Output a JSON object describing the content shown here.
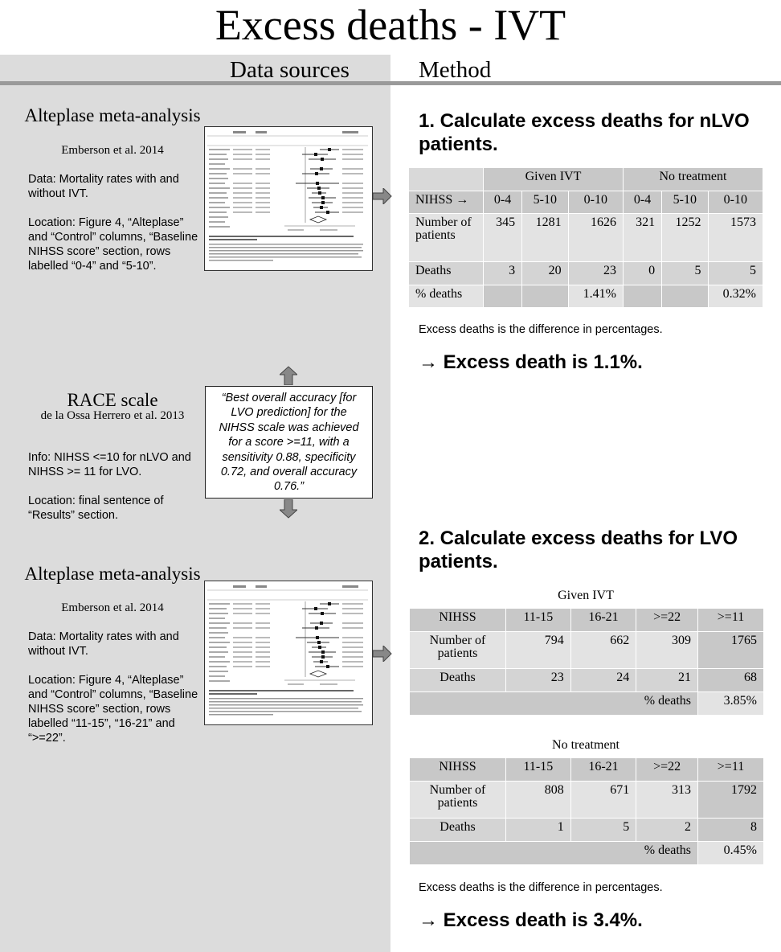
{
  "title": "Excess deaths - IVT",
  "headers": {
    "data_sources": "Data sources",
    "method": "Method"
  },
  "sources": [
    {
      "title": "Alteplase meta-analysis",
      "author": "Emberson et al. 2014",
      "data": "Data: Mortality rates with and without IVT.",
      "location": "Location: Figure 4, “Alteplase” and “Control” columns, “Baseline NIHSS score” section, rows labelled “0-4” and “5-10”."
    },
    {
      "title": "RACE scale",
      "author": "de la Ossa Herrero et al. 2013",
      "data": "Info: NIHSS <=10 for nLVO and NIHSS >= 11 for LVO.",
      "location": "Location: final sentence of “Results” section.",
      "quote": "“Best overall accuracy [for LVO prediction] for the NIHSS scale was achieved for a score >=11, with a sensitivity 0.88, specificity 0.72, and overall accuracy 0.76.”"
    },
    {
      "title": "Alteplase meta-analysis",
      "author": "Emberson et al. 2014",
      "data": "Data: Mortality rates with and without IVT.",
      "location": "Location: Figure 4, “Alteplase” and “Control” columns, “Baseline NIHSS score” section, rows labelled “11-15”, “16-21” and “>=22”."
    }
  ],
  "step1": {
    "title": "1. Calculate excess deaths for nLVO patients.",
    "group_given": "Given IVT",
    "group_none": "No treatment",
    "nihss_label": "NIHSS →",
    "cols": [
      "0-4",
      "5-10",
      "0-10",
      "0-4",
      "5-10",
      "0-10"
    ],
    "patients_label": "Number of patients",
    "patients": [
      "345",
      "1281",
      "1626",
      "321",
      "1252",
      "1573"
    ],
    "deaths_label": "Deaths",
    "deaths": [
      "3",
      "20",
      "23",
      "0",
      "5",
      "5"
    ],
    "pct_label": "% deaths",
    "pct_given": "1.41%",
    "pct_none": "0.32%",
    "note": "Excess deaths is the difference in percentages.",
    "result": "→ Excess death is 1.1%."
  },
  "step2": {
    "title": "2. Calculate excess deaths for LVO patients.",
    "given": {
      "caption": "Given IVT",
      "nihss_label": "NIHSS",
      "cols": [
        "11-15",
        "16-21",
        ">=22",
        ">=11"
      ],
      "patients_label": "Number of patients",
      "patients": [
        "794",
        "662",
        "309",
        "1765"
      ],
      "deaths_label": "Deaths",
      "deaths": [
        "23",
        "24",
        "21",
        "68"
      ],
      "pct_label": "% deaths",
      "pct": "3.85%"
    },
    "none": {
      "caption": "No treatment",
      "nihss_label": "NIHSS",
      "cols": [
        "11-15",
        "16-21",
        ">=22",
        ">=11"
      ],
      "patients_label": "Number of patients",
      "patients": [
        "808",
        "671",
        "313",
        "1792"
      ],
      "deaths_label": "Deaths",
      "deaths": [
        "1",
        "5",
        "2",
        "8"
      ],
      "pct_label": "% deaths",
      "pct": "0.45%"
    },
    "note": "Excess deaths is the difference in percentages.",
    "result": "→ Excess death is 3.4%."
  }
}
